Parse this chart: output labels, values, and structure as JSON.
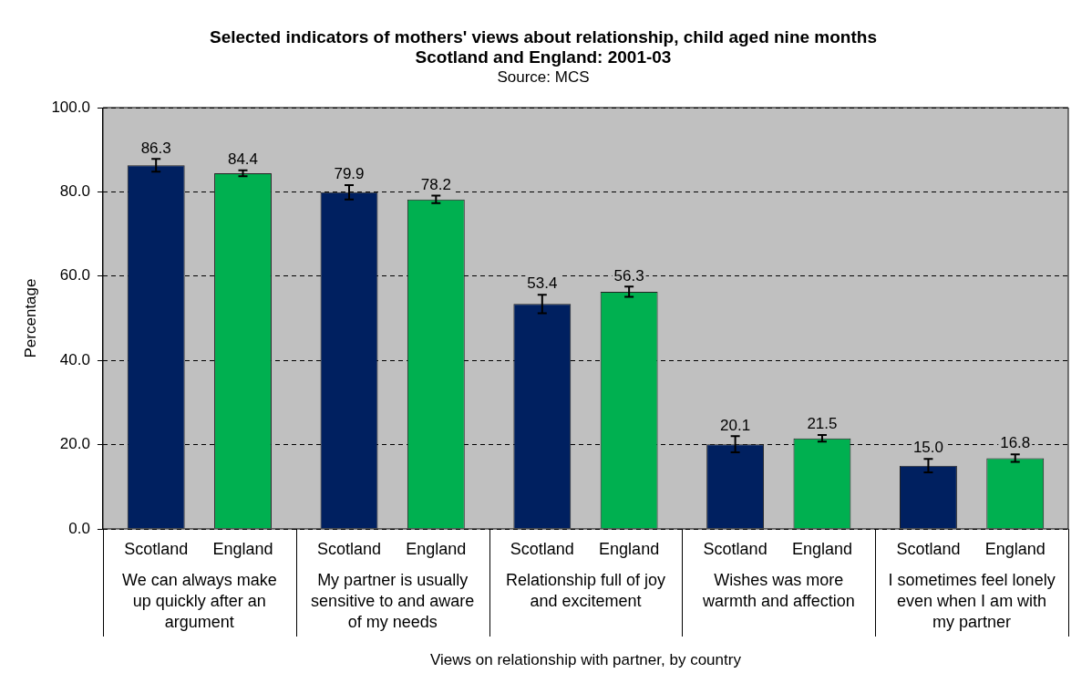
{
  "chart_data": {
    "type": "bar",
    "title": "Selected indicators of mothers' views about relationship, child aged nine months",
    "subtitle": "Scotland and England: 2001-03",
    "annotations": [
      "Source: MCS"
    ],
    "xlabel": "Views on relationship with partner, by country",
    "ylabel": "Percentage",
    "categories": [
      "We can always make up quickly after an argument",
      "My partner is usually sensitive to and aware of my needs",
      "Relationship full of joy and excitement",
      "Wishes was more warmth and affection",
      "I sometimes feel lonely even when I am with my partner"
    ],
    "series": [
      {
        "name": "Scotland",
        "color": "#002060",
        "values": [
          86.3,
          79.9,
          53.4,
          20.1,
          15.0
        ],
        "value_labels": [
          "86.3",
          "79.9",
          "53.4",
          "20.1",
          "15.0"
        ],
        "errors": [
          1.5,
          1.7,
          2.2,
          1.9,
          1.6
        ]
      },
      {
        "name": "England",
        "color": "#00b050",
        "values": [
          84.4,
          78.2,
          56.3,
          21.5,
          16.8
        ],
        "value_labels": [
          "84.4",
          "78.2",
          "56.3",
          "21.5",
          "16.8"
        ],
        "errors": [
          0.7,
          0.9,
          1.2,
          0.8,
          0.9
        ]
      }
    ],
    "ylim": [
      0,
      100
    ],
    "yticks": [
      {
        "value": 0,
        "label": "0.0"
      },
      {
        "value": 20,
        "label": "20.0"
      },
      {
        "value": 40,
        "label": "40.0"
      },
      {
        "value": 60,
        "label": "60.0"
      },
      {
        "value": 80,
        "label": "80.0"
      },
      {
        "value": 100,
        "label": "100.0"
      }
    ],
    "grid": "y",
    "legend": false
  }
}
